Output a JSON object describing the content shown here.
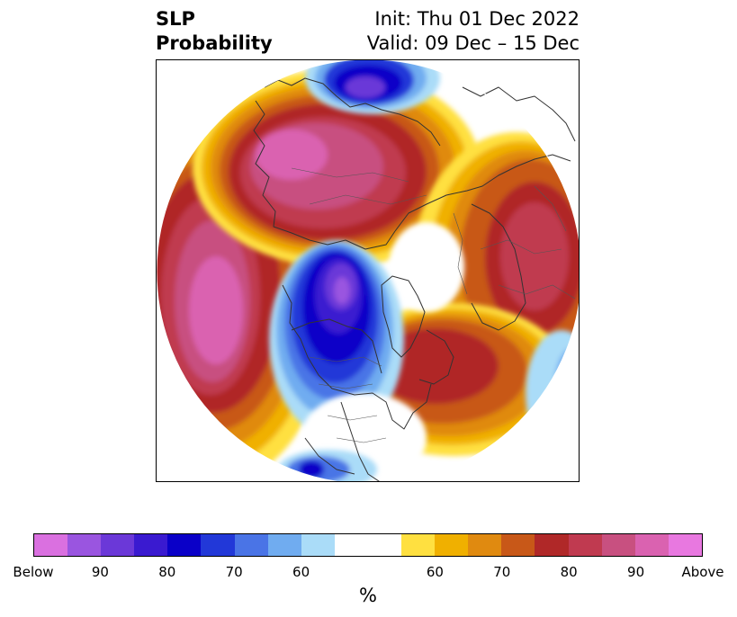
{
  "title": {
    "left_line1": "SLP",
    "left_line2": "Probability",
    "right_line1": "Init: Thu 01 Dec 2022",
    "right_line2": "Valid: 09 Dec – 15 Dec"
  },
  "colorbar": {
    "unit_label": "%",
    "colors": [
      "#da70e0",
      "#9a55e0",
      "#6b38d8",
      "#3a1ad0",
      "#0a00c8",
      "#2238d8",
      "#4a74e6",
      "#70acf0",
      "#aadcf8",
      "#ffffff",
      "#ffffff",
      "#ffe040",
      "#f0b000",
      "#e08a10",
      "#c85818",
      "#b02828",
      "#c03a50",
      "#c85080",
      "#da62b0",
      "#e878e0"
    ],
    "tick_labels": [
      {
        "text": "Below",
        "index": 0
      },
      {
        "text": "90",
        "index": 2
      },
      {
        "text": "80",
        "index": 4
      },
      {
        "text": "70",
        "index": 6
      },
      {
        "text": "60",
        "index": 8
      },
      {
        "text": "60",
        "index": 12
      },
      {
        "text": "70",
        "index": 14
      },
      {
        "text": "80",
        "index": 16
      },
      {
        "text": "90",
        "index": 18
      },
      {
        "text": "Above",
        "index": 20
      }
    ]
  }
}
